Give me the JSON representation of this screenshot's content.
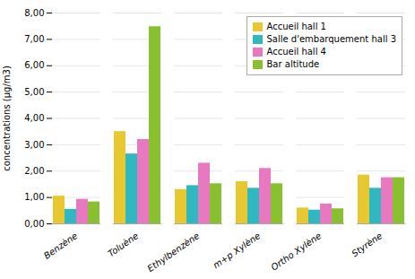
{
  "chart_data": {
    "type": "bar",
    "categories": [
      "Benzène",
      "Toluène",
      "Ethylbenzène",
      "m+p Xylène",
      "Ortho Xylène",
      "Styrène"
    ],
    "series": [
      {
        "name": "Accueil hall 1",
        "color": "#E8C830",
        "values": [
          1.05,
          3.5,
          1.3,
          1.6,
          0.6,
          1.85
        ]
      },
      {
        "name": "Salle d'embarquement hall 3",
        "color": "#30B8C0",
        "values": [
          0.55,
          2.65,
          1.45,
          1.35,
          0.52,
          1.35
        ]
      },
      {
        "name": "Accueil hall 4",
        "color": "#E878C0",
        "values": [
          0.93,
          3.2,
          2.3,
          2.1,
          0.75,
          1.75
        ]
      },
      {
        "name": "Bar altitude",
        "color": "#88C030",
        "values": [
          0.83,
          7.48,
          1.52,
          1.52,
          0.57,
          1.75
        ]
      }
    ],
    "ylabel": "concentrations (µg/m3)",
    "ylim": [
      0,
      8.0
    ],
    "yticks": [
      {
        "value": 0.0,
        "label": "0,00"
      },
      {
        "value": 1.0,
        "label": "1,00"
      },
      {
        "value": 2.0,
        "label": "2,00"
      },
      {
        "value": 3.0,
        "label": "3,00"
      },
      {
        "value": 4.0,
        "label": "4,00"
      },
      {
        "value": 5.0,
        "label": "5,00"
      },
      {
        "value": 6.0,
        "label": "6,00"
      },
      {
        "value": 7.0,
        "label": "7,00"
      },
      {
        "value": 8.0,
        "label": "8,00"
      }
    ],
    "grid": true,
    "legend": "upper right"
  }
}
